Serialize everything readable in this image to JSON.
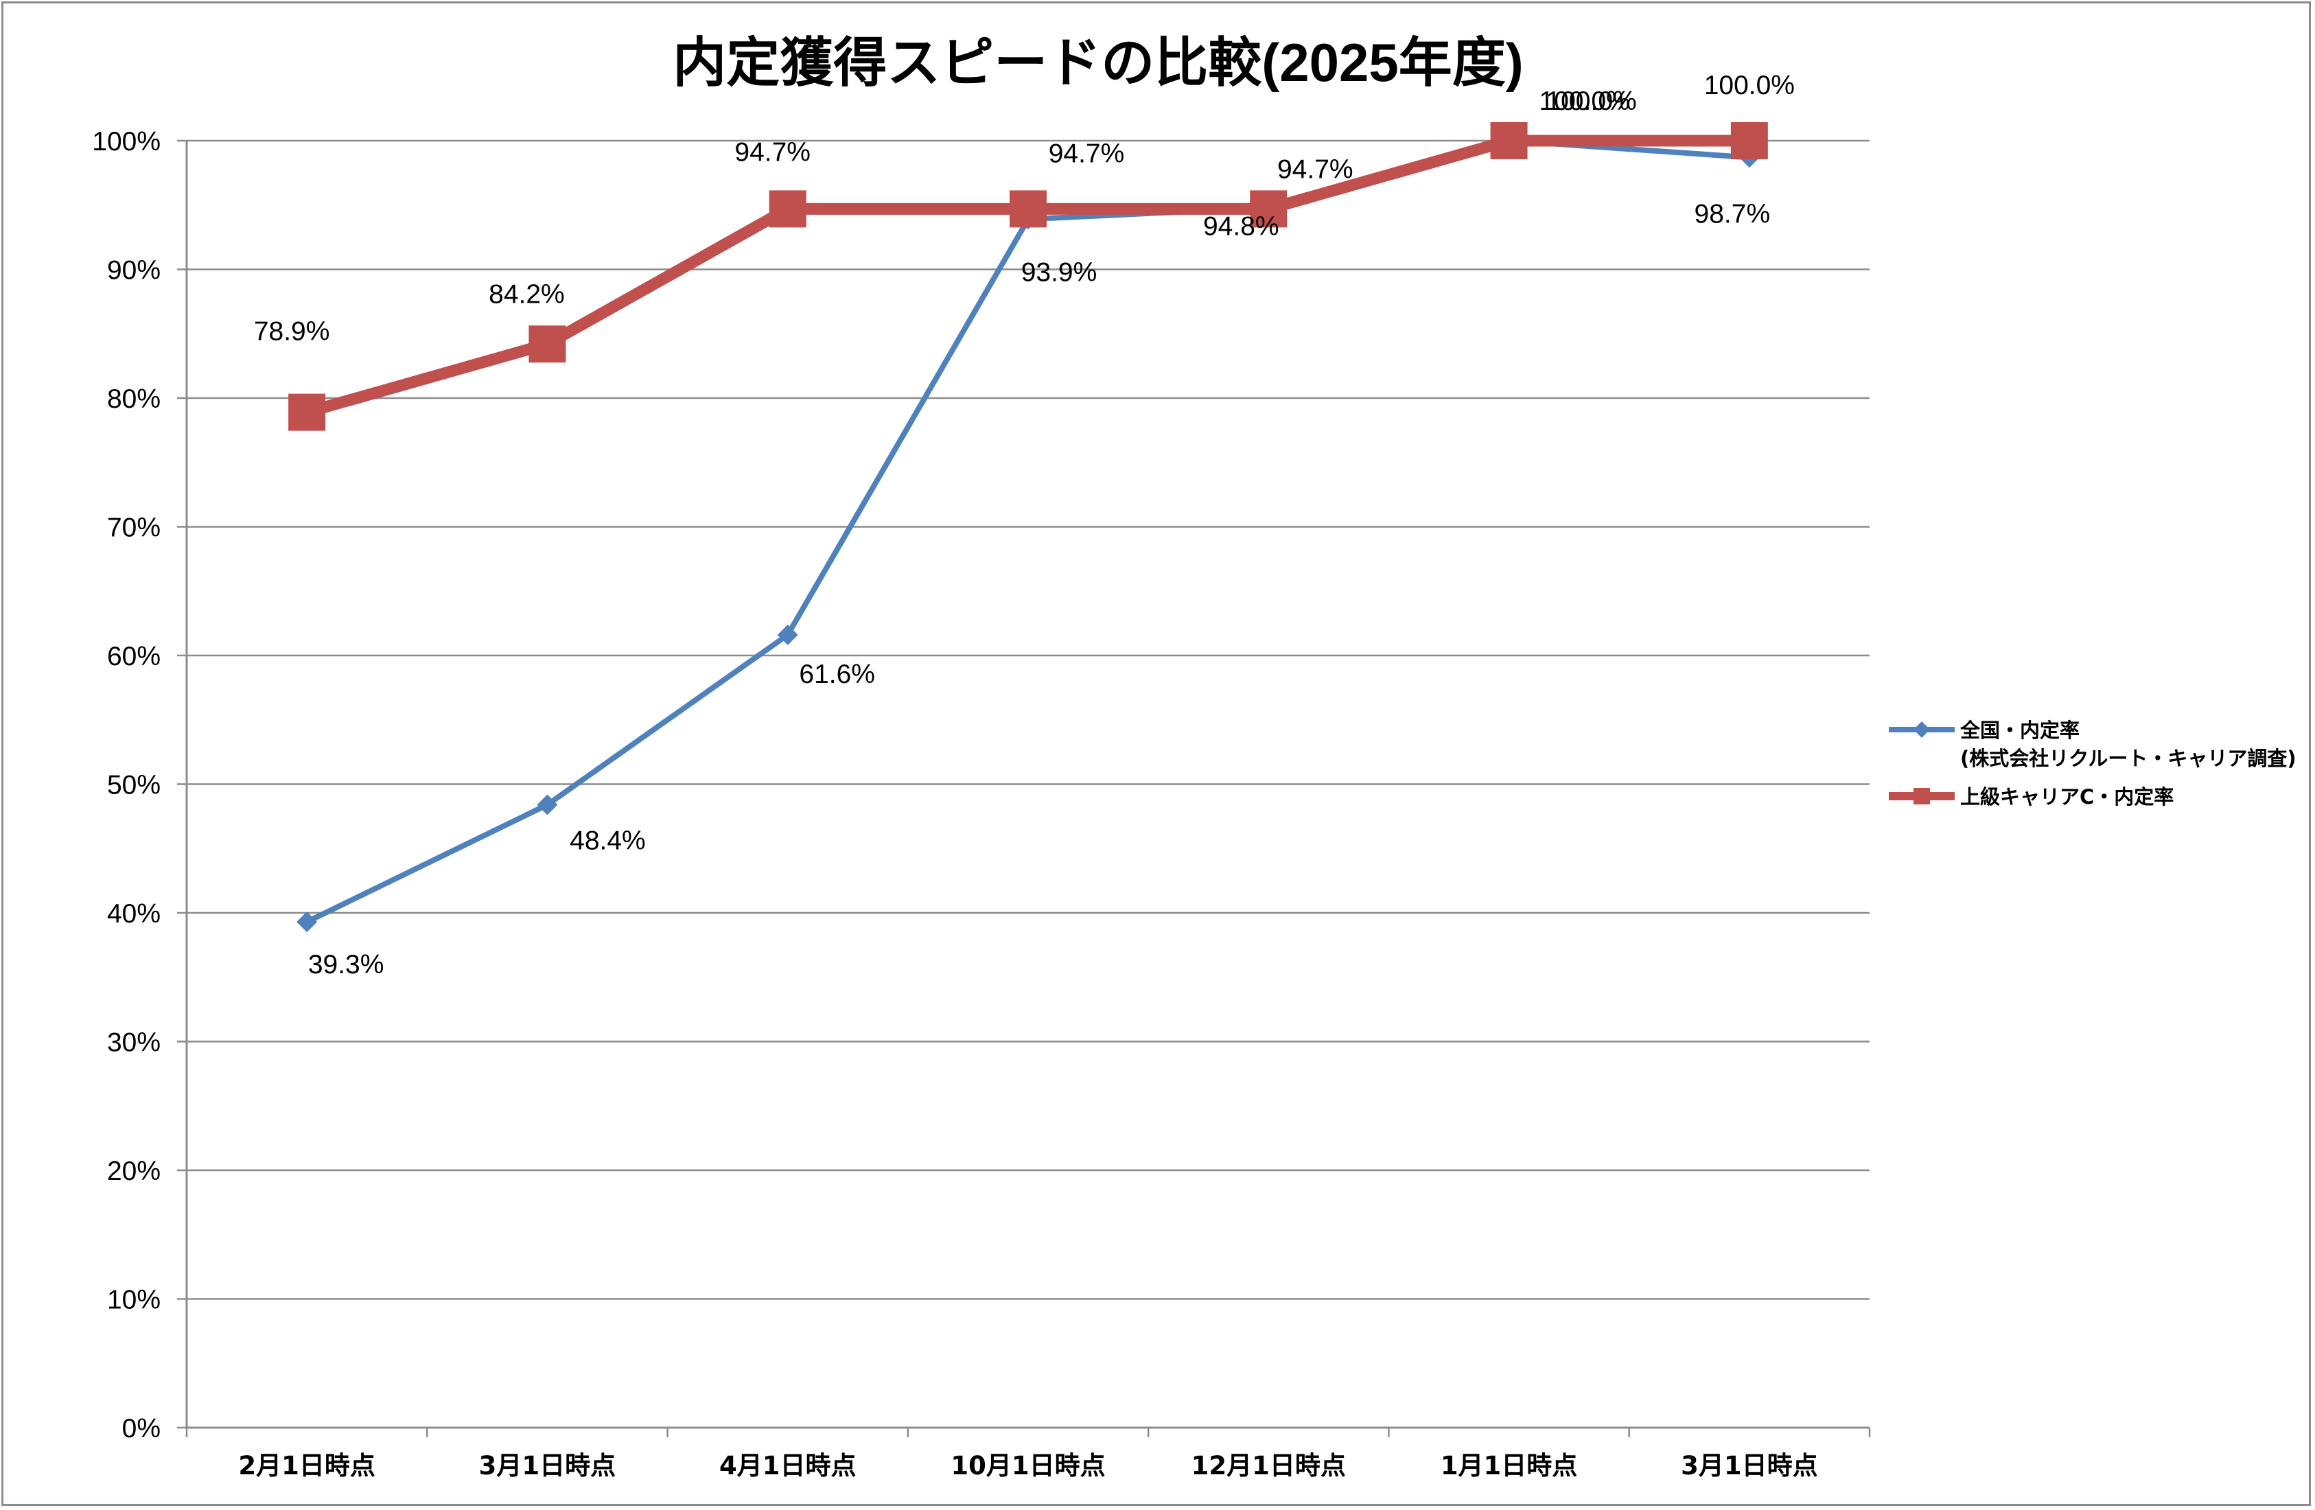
{
  "chart_data": {
    "type": "line",
    "title": "内定獲得スピードの比較(2025年度)",
    "categories": [
      "2月1日時点",
      "3月1日時点",
      "4月1日時点",
      "10月1日時点",
      "12月1日時点",
      "1月1日時点",
      "3月1日時点"
    ],
    "ylim": [
      0,
      100
    ],
    "yticks": [
      "0%",
      "10%",
      "20%",
      "30%",
      "40%",
      "50%",
      "60%",
      "70%",
      "80%",
      "90%",
      "100%"
    ],
    "grid": true,
    "legend_position": "right",
    "series": [
      {
        "name": "全国・内定率",
        "name_line2": "(株式会社リクルート・キャリア調査)",
        "color": "#4f81bd",
        "marker": "diamond",
        "values": [
          39.3,
          48.4,
          61.6,
          93.9,
          94.8,
          100.0,
          98.7
        ],
        "labels": [
          "39.3%",
          "48.4%",
          "61.6%",
          "93.9%",
          "94.8%",
          "100.0%",
          "98.7%"
        ]
      },
      {
        "name": "上級キャリアC・内定率",
        "color": "#c0504d",
        "marker": "square",
        "values": [
          78.9,
          84.2,
          94.7,
          94.7,
          94.7,
          100.0,
          100.0
        ],
        "labels": [
          "78.9%",
          "84.2%",
          "94.7%",
          "94.7%",
          "94.7%",
          "100.0%",
          "100.0%"
        ]
      }
    ]
  }
}
